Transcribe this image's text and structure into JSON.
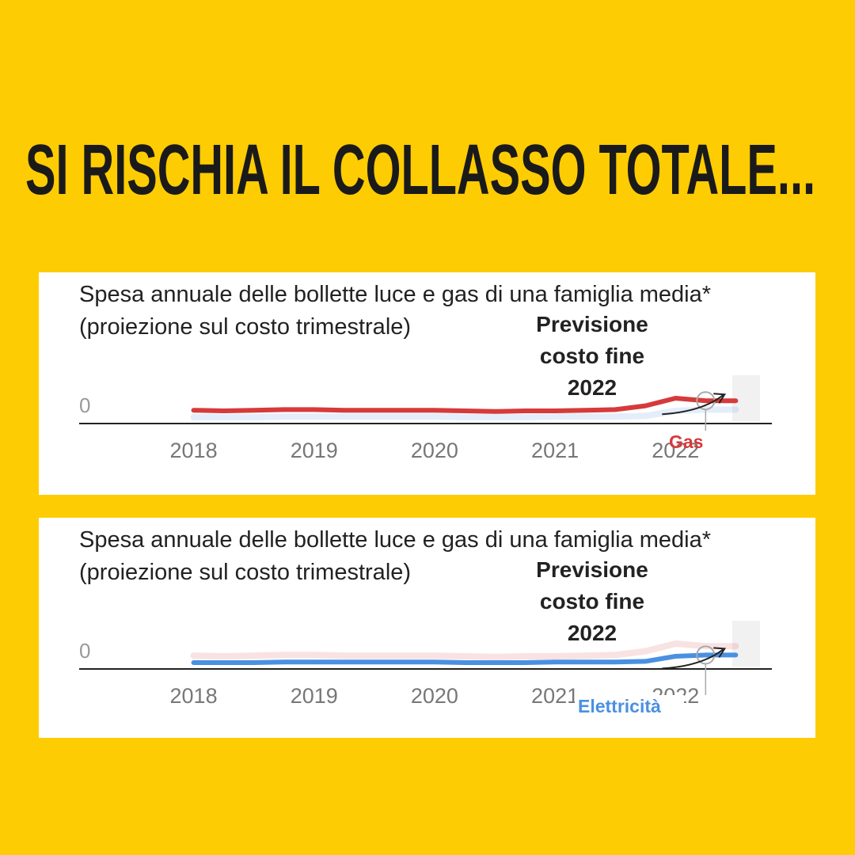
{
  "headline": "SI RISCHIA IL COLLASSO TOTALE...",
  "chart_data": [
    {
      "type": "line",
      "title": "Spesa annuale delle bollette luce e gas di una famiglia media* (proiezione sul costo trimestrale)",
      "annotation": "Previsione costo fine 2022",
      "x": [
        2018,
        2018.25,
        2018.5,
        2018.75,
        2019,
        2019.25,
        2019.5,
        2019.75,
        2020,
        2020.25,
        2020.5,
        2020.75,
        2021,
        2021.25,
        2021.5,
        2021.75,
        2022,
        2022.25,
        2022.5
      ],
      "xlim": [
        2017.05,
        2022.8
      ],
      "xticks": [
        2018,
        2019,
        2020,
        2021,
        2022
      ],
      "ylim": [
        0,
        100
      ],
      "yticks": [
        0
      ],
      "highlight_series": 0,
      "series": [
        {
          "name": "Gas",
          "color": "#d63a3a",
          "values": [
            21,
            20,
            21,
            22,
            22,
            21,
            21,
            21,
            21,
            20,
            19,
            20,
            20,
            21,
            22,
            28,
            40,
            36,
            36
          ]
        },
        {
          "name": "Elettricità",
          "color": "#4a90e2",
          "values": [
            10,
            10,
            10,
            11,
            11,
            11,
            11,
            11,
            11,
            10,
            10,
            10,
            11,
            11,
            11,
            12,
            20,
            22,
            22
          ]
        }
      ]
    },
    {
      "type": "line",
      "title": "Spesa annuale delle bollette luce e gas di una famiglia media* (proiezione sul costo trimestrale)",
      "annotation": "Previsione costo fine 2022",
      "x": [
        2018,
        2018.25,
        2018.5,
        2018.75,
        2019,
        2019.25,
        2019.5,
        2019.75,
        2020,
        2020.25,
        2020.5,
        2020.75,
        2021,
        2021.25,
        2021.5,
        2021.75,
        2022,
        2022.25,
        2022.5
      ],
      "xlim": [
        2017.05,
        2022.8
      ],
      "xticks": [
        2018,
        2019,
        2020,
        2021,
        2022
      ],
      "ylim": [
        0,
        100
      ],
      "yticks": [
        0
      ],
      "highlight_series": 1,
      "series": [
        {
          "name": "Gas",
          "color": "#d63a3a",
          "values": [
            21,
            20,
            21,
            22,
            22,
            21,
            21,
            21,
            21,
            20,
            19,
            20,
            20,
            21,
            22,
            28,
            40,
            36,
            36
          ]
        },
        {
          "name": "Elettricità",
          "color": "#4a90e2",
          "values": [
            10,
            10,
            10,
            11,
            11,
            11,
            11,
            11,
            11,
            10,
            10,
            10,
            11,
            11,
            11,
            12,
            20,
            22,
            22
          ]
        }
      ]
    }
  ]
}
